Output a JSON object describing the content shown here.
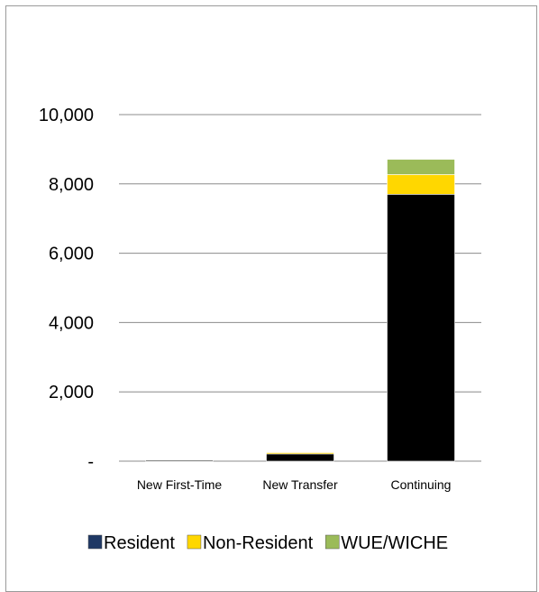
{
  "chart_data": {
    "type": "bar",
    "stacked": true,
    "categories": [
      "New First-Time",
      "New Transfer",
      "Continuing"
    ],
    "series": [
      {
        "name": "Resident",
        "values": [
          30,
          210,
          7700
        ],
        "color": "#1f3864",
        "fill": "#000000"
      },
      {
        "name": "Non-Resident",
        "values": [
          8,
          40,
          570
        ],
        "color": "#ffd700",
        "fill": "#ffd700"
      },
      {
        "name": "WUE/WICHE",
        "values": [
          5,
          15,
          440
        ],
        "color": "#9bbb59",
        "fill": "#9bbb59"
      }
    ],
    "yticks": [
      "-",
      "2,000",
      "4,000",
      "6,000",
      "8,000",
      "10,000"
    ],
    "ylim": [
      0,
      10000
    ],
    "grid": true,
    "legend_position": "bottom"
  }
}
